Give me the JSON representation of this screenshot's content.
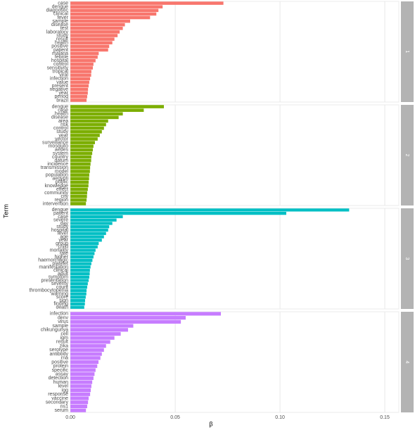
{
  "chart_data": {
    "type": "bar",
    "orientation": "horizontal",
    "x_label": "β",
    "y_label": "Term",
    "xlim": [
      -0.0044,
      0.1567
    ],
    "xticks": [
      {
        "value": 0,
        "label": "0.00"
      },
      {
        "value": 0.05,
        "label": "0.05"
      },
      {
        "value": 0.1,
        "label": "0.10"
      },
      {
        "value": 0.15,
        "label": "0.15"
      }
    ],
    "grid": true,
    "facets": [
      {
        "label": "1",
        "color": "#F8766D",
        "categories": [
          "case",
          "dengue",
          "diagnostic",
          "clinical",
          "fever",
          "sample",
          "disease",
          "test",
          "laboratory",
          "study",
          "result",
          "health",
          "positive",
          "patient",
          "malaria",
          "febrile",
          "hospital",
          "control",
          "sensitivity",
          "tropical",
          "viral",
          "infection",
          "value",
          "present",
          "negative",
          "year",
          "period",
          "brazil"
        ],
        "values": [
          0.073,
          0.044,
          0.042,
          0.041,
          0.038,
          0.0285,
          0.026,
          0.025,
          0.0235,
          0.0225,
          0.021,
          0.02,
          0.0185,
          0.018,
          0.0135,
          0.013,
          0.012,
          0.011,
          0.0107,
          0.01,
          0.0099,
          0.0094,
          0.009,
          0.0087,
          0.0084,
          0.0083,
          0.008,
          0.0077
        ]
      },
      {
        "label": "2",
        "color": "#7CAE00",
        "categories": [
          "dengue",
          "case",
          "health",
          "disease",
          "area",
          "risk",
          "control",
          "study",
          "year",
          "vector",
          "surveillance",
          "mosquito",
          "aedes",
          "system",
          "country",
          "datum",
          "incidence",
          "transmission",
          "model",
          "population",
          "aegypti",
          "public",
          "knowledge",
          "effect",
          "community",
          "city",
          "region",
          "intervention"
        ],
        "values": [
          0.0446,
          0.035,
          0.025,
          0.023,
          0.018,
          0.017,
          0.016,
          0.015,
          0.014,
          0.013,
          0.0117,
          0.011,
          0.0107,
          0.0104,
          0.01,
          0.0099,
          0.0096,
          0.0094,
          0.0093,
          0.009,
          0.0089,
          0.0087,
          0.0086,
          0.0083,
          0.008,
          0.0079,
          0.0077,
          0.0074
        ]
      },
      {
        "label": "3",
        "color": "#00BFC4",
        "categories": [
          "dengue",
          "patient",
          "case",
          "severe",
          "day",
          "study",
          "hospital",
          "fever",
          "age",
          "year",
          "group",
          "child",
          "mortality",
          "rate",
          "higher",
          "haemorrhagic",
          "platelet",
          "manifestation",
          "clinical",
          "adult",
          "symptom",
          "presentation",
          "severity",
          "count",
          "thrombocytopenia",
          "warning",
          "score",
          "sign",
          "finding",
          "death"
        ],
        "values": [
          0.133,
          0.103,
          0.025,
          0.022,
          0.02,
          0.0185,
          0.018,
          0.017,
          0.016,
          0.015,
          0.0135,
          0.013,
          0.012,
          0.0115,
          0.011,
          0.0105,
          0.01,
          0.0096,
          0.0093,
          0.0092,
          0.009,
          0.0087,
          0.0083,
          0.008,
          0.0077,
          0.0076,
          0.0073,
          0.007,
          0.0069,
          0.0066
        ]
      },
      {
        "label": "4",
        "color": "#C77CFF",
        "categories": [
          "infection",
          "denv",
          "virus",
          "sample",
          "chikungunya",
          "cell",
          "igm",
          "result",
          "zika",
          "serotype",
          "antibody",
          "rna",
          "positive",
          "protein",
          "specific",
          "assay",
          "detection",
          "human",
          "level",
          "igg",
          "response",
          "vaccine",
          "secondary",
          "ns1",
          "serum"
        ],
        "values": [
          0.0718,
          0.055,
          0.0527,
          0.03,
          0.0275,
          0.024,
          0.021,
          0.019,
          0.017,
          0.016,
          0.015,
          0.0143,
          0.0134,
          0.0128,
          0.012,
          0.0115,
          0.011,
          0.0104,
          0.01,
          0.0097,
          0.0094,
          0.0087,
          0.0084,
          0.008,
          0.0074
        ]
      }
    ]
  }
}
